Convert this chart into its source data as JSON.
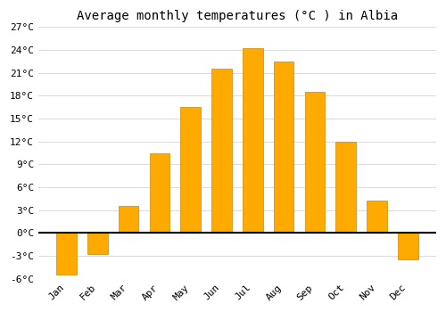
{
  "title": "Average monthly temperatures (°C ) in Albia",
  "months": [
    "Jan",
    "Feb",
    "Mar",
    "Apr",
    "May",
    "Jun",
    "Jul",
    "Aug",
    "Sep",
    "Oct",
    "Nov",
    "Dec"
  ],
  "values": [
    -5.5,
    -2.8,
    3.5,
    10.5,
    16.5,
    21.5,
    24.3,
    22.5,
    18.5,
    12.0,
    4.3,
    -3.5
  ],
  "bar_color": "#FFAA00",
  "bar_edge_color": "#CC8800",
  "ylim": [
    -6,
    27
  ],
  "yticks": [
    -6,
    -3,
    0,
    3,
    6,
    9,
    12,
    15,
    18,
    21,
    24,
    27
  ],
  "ytick_labels": [
    "-6°C",
    "-3°C",
    "0°C",
    "3°C",
    "6°C",
    "9°C",
    "12°C",
    "15°C",
    "18°C",
    "21°C",
    "24°C",
    "27°C"
  ],
  "bg_color": "#ffffff",
  "plot_bg_color": "#ffffff",
  "grid_color": "#dddddd",
  "title_fontsize": 10,
  "tick_fontsize": 8,
  "xlabel_rotation": 45,
  "bar_width": 0.65
}
